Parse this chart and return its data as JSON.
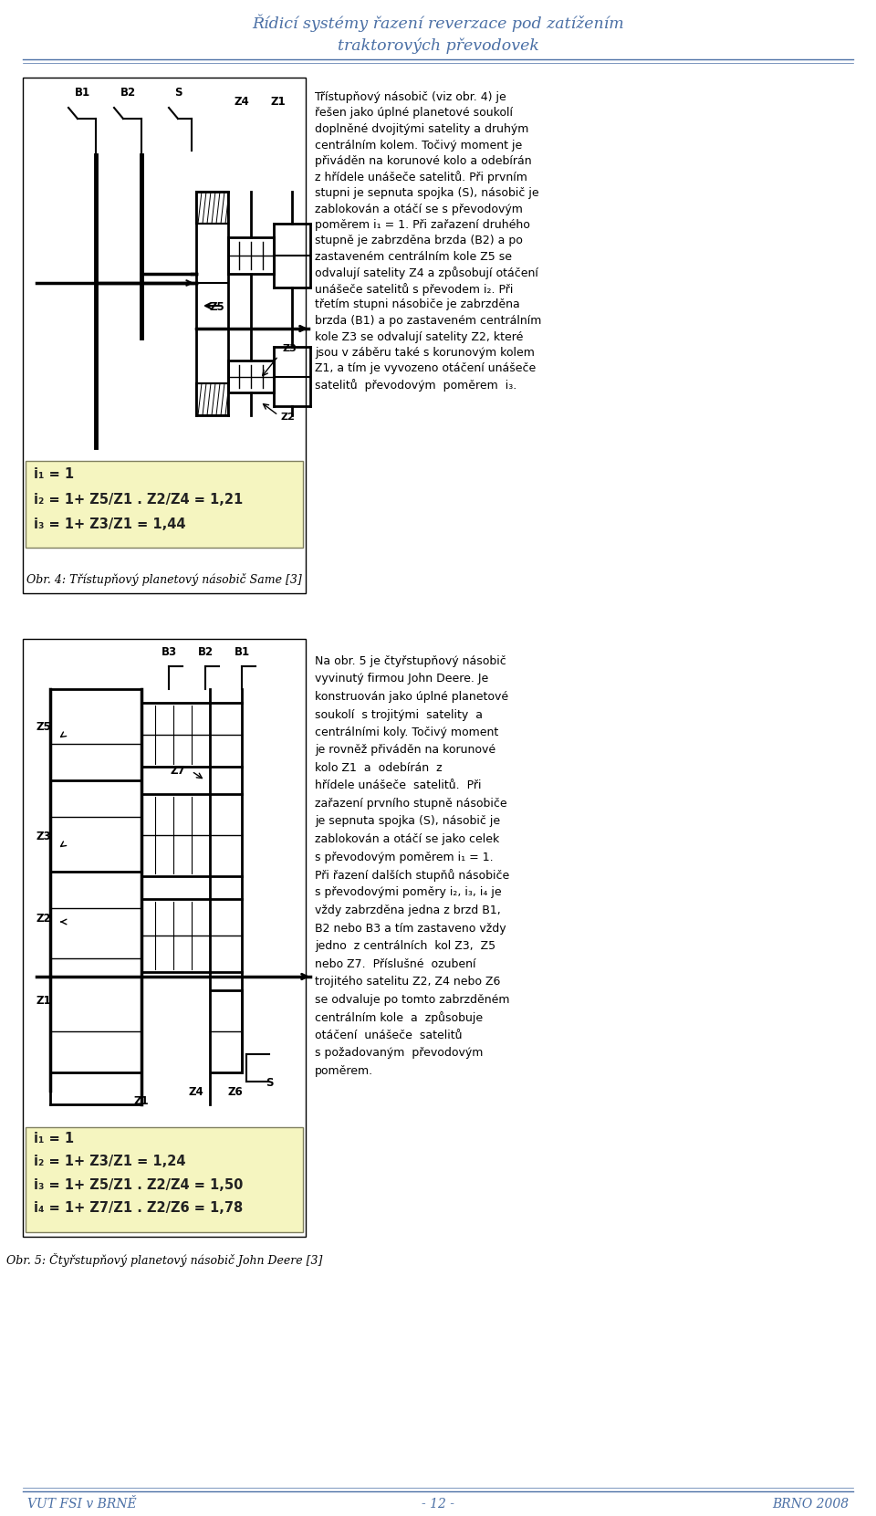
{
  "title_line1": "Řídicí systémy řazení reverzace pod zatížením",
  "title_line2": "traktorových převodovek",
  "title_color": "#4a6fa5",
  "title_fontsize": 12.5,
  "footer_left": "VUT FSI v BRNĚ",
  "footer_center": "- 12 -",
  "footer_right": "BRNO 2008",
  "footer_color": "#4a6fa5",
  "footer_fontsize": 10,
  "line_color": "#4a6fa5",
  "fig_bg": "#ffffff",
  "caption1": "Obr. 4: Třístupňový planetový násobič Same [3]",
  "caption2": "Obr. 5: Čtyřstupňový planetový násobič John Deere [3]",
  "caption_fontsize": 9,
  "text_right1_lines": [
    "Třístupňový násobič (viz obr. 4) je",
    "řešen jako úplné planetové soukolí",
    "doplněné dvojitými satelity a druhým",
    "centrálním kolem. Točivý moment je",
    "přiváděn na korunové kolo a odebírán",
    "z hřídele unášeče satelitů. Při prvním",
    "stupni je sepnuta spojka (S), násobič je",
    "zablokován a otáčí se s převodovým",
    "poměrem i₁ = 1. Při zařazení druhého",
    "stupně je zabrzděna brzda (B2) a po",
    "zastaveném centrálním kole Z5 se",
    "odvalují satelity Z4 a způsobují otáčení",
    "unášeče satelitů s převodem i₂. Při",
    "třetím stupni násobiče je zabrzděna",
    "brzda (B1) a po zastaveném centrálním",
    "kole Z3 se odvalují satelity Z2, které",
    "jsou v záběru také s korunovým kolem",
    "Z1, a tím je vyvozeno otáčení unášeče",
    "satelitů  převodovým  poměrem  i₃."
  ],
  "text_right2_lines": [
    "Na obr. 5 je čtyřstupňový násobič",
    "vyvinutý firmou John Deere. Je",
    "konstruován jako úplné planetové",
    "soukolí  s trojitými  satelity  a",
    "centrálními koly. Točivý moment",
    "je rovněž přiváděn na korunové",
    "kolo Z1  a  odebírán  z",
    "hřídele unášeče  satelitů.  Při",
    "zařazení prvního stupně násobiče",
    "je sepnuta spojka (S), násobič je",
    "zablokován a otáčí se jako celek",
    "s převodovým poměrem i₁ = 1.",
    "Při řazení dalších stupňů násobiče",
    "s převodovými poměry i₂, i₃, i₄ je",
    "vždy zabrzděna jedna z brzd B1,",
    "B2 nebo B3 a tím zastaveno vždy",
    "jedno  z centrálních  kol Z3,  Z5",
    "nebo Z7.  Příslušné  ozubení",
    "trojitého satelitu Z2, Z4 nebo Z6",
    "se odvaluje po tomto zabrzděném",
    "centrálním kole  a  způsobuje",
    "otáčení  unášeče  satelitů",
    "s požadovaným  převodovým",
    "poměrem."
  ],
  "box1_formulas": [
    "i₁ = 1",
    "i₂ = 1+ Z5/Z1 . Z2/Z4 = 1,21",
    "i₃ = 1+ Z3/Z1 = 1,44"
  ],
  "box2_formulas": [
    "i₁ = 1",
    "i₂ = 1+ Z3/Z1 = 1,24",
    "i₃ = 1+ Z5/Z1 . Z2/Z4 = 1,50",
    "i₄ = 1+ Z7/Z1 . Z2/Z6 = 1,78"
  ],
  "box_bg": "#f5f5c0",
  "formula_fontsize": 10.5,
  "text_fontsize": 9.0
}
